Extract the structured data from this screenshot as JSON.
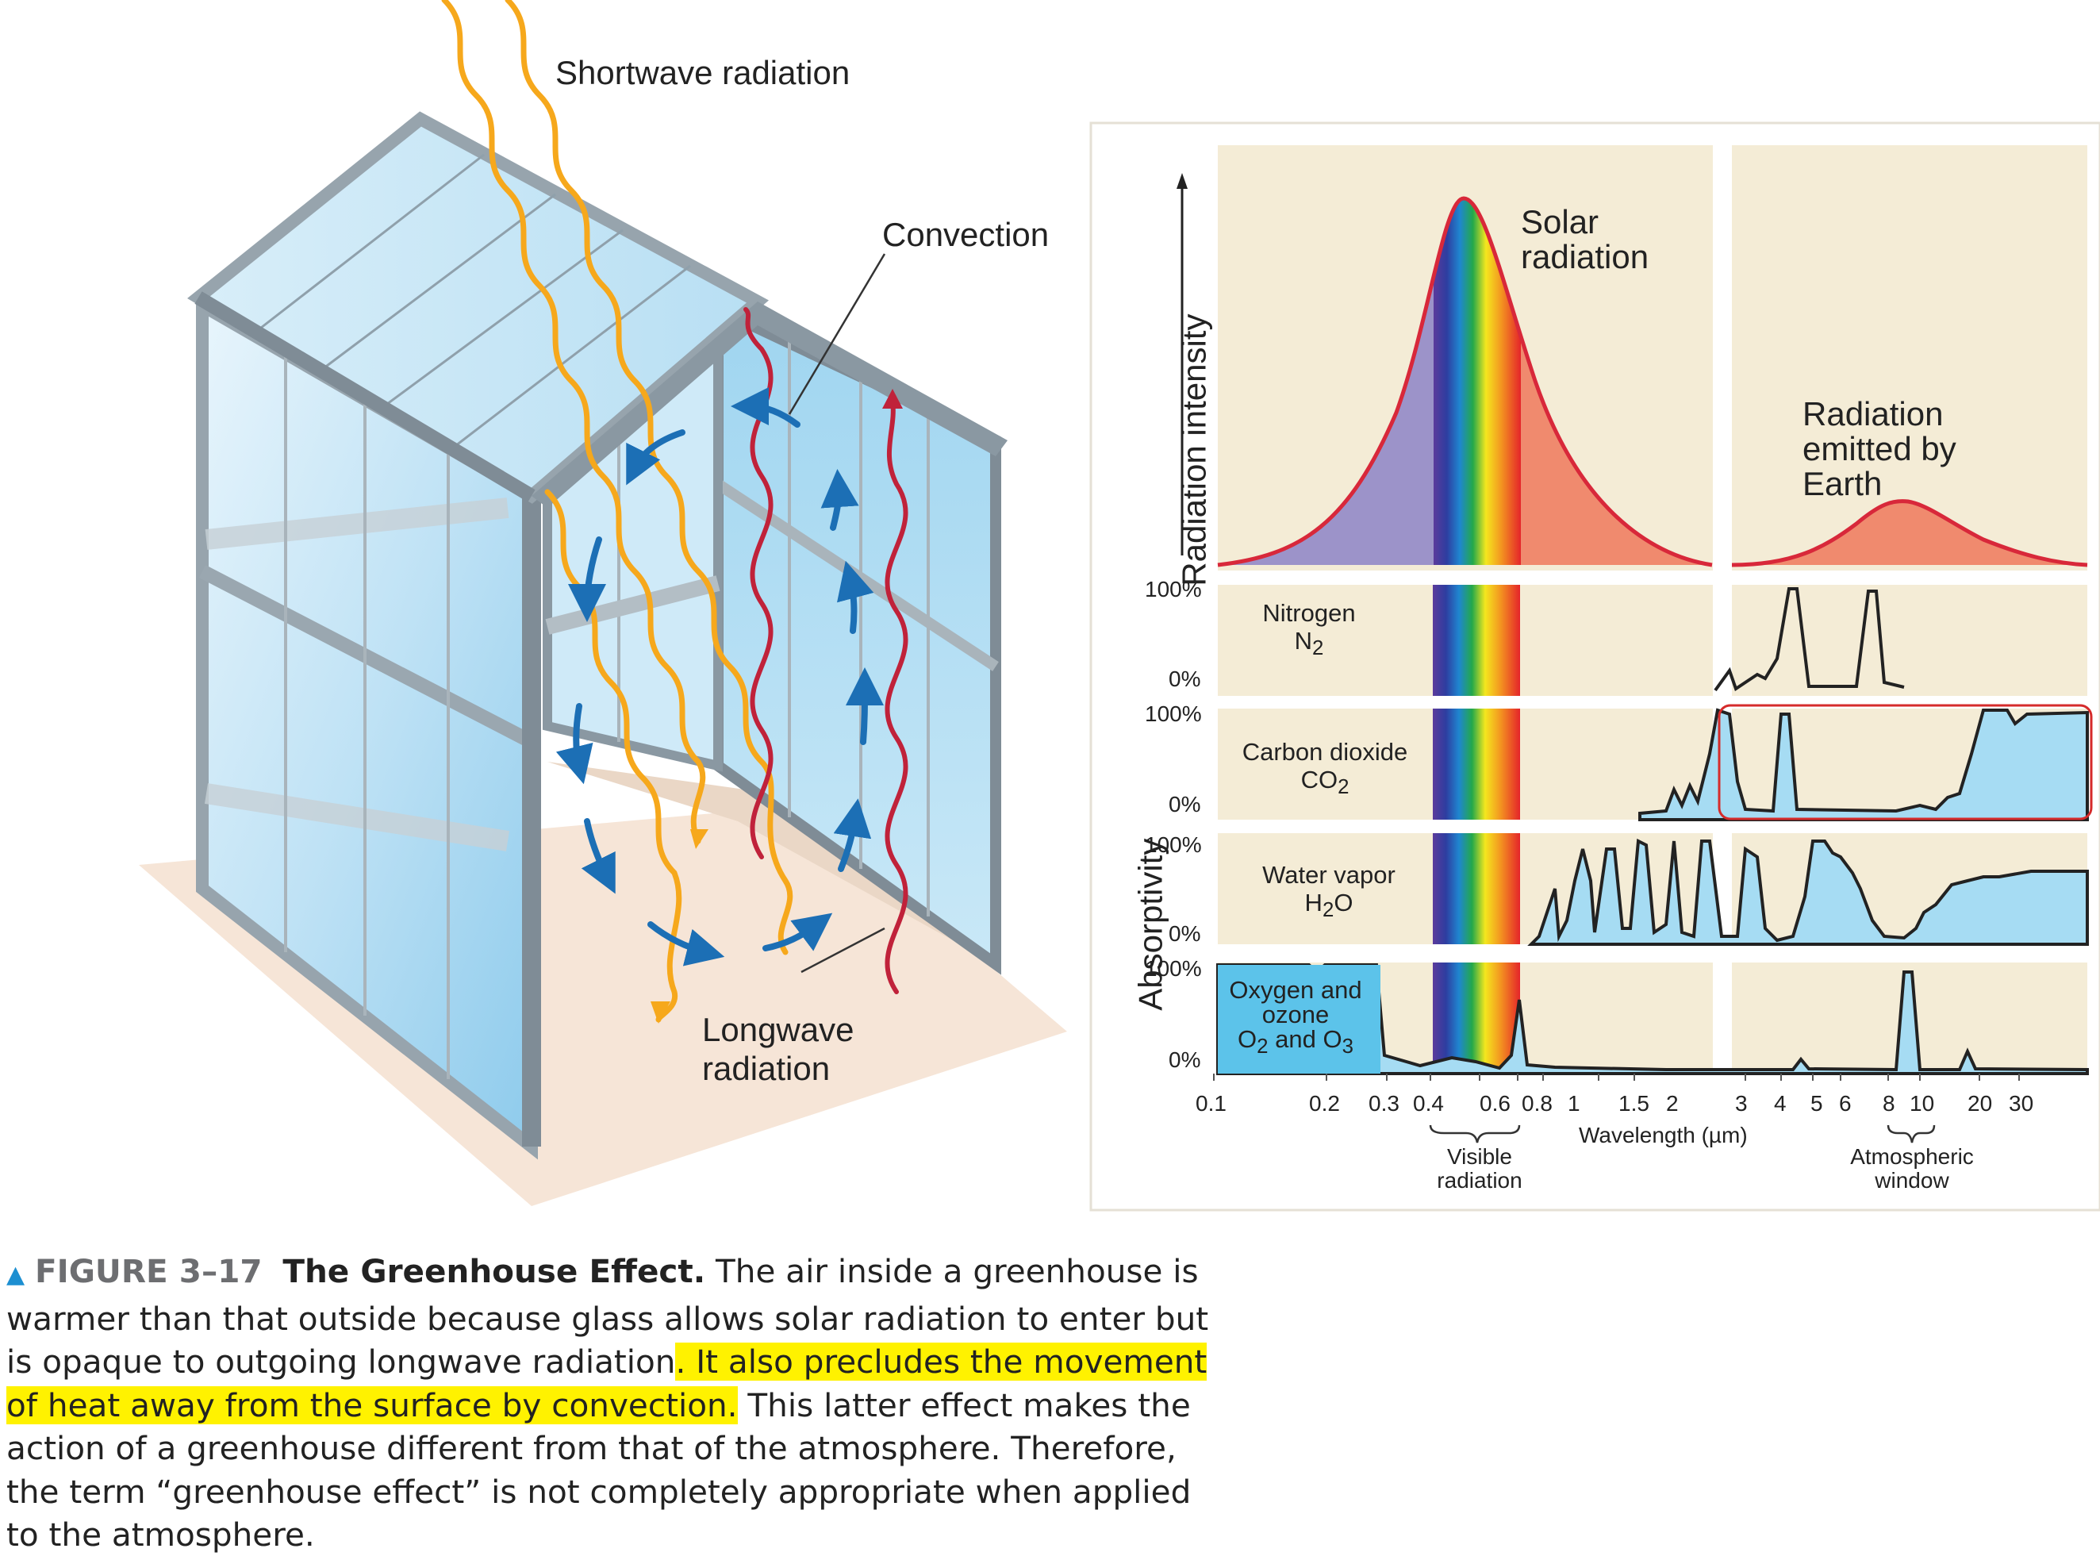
{
  "greenhouse": {
    "shortwave_label": "Shortwave radiation",
    "convection_label": "Convection",
    "longwave_label": "Longwave radiation"
  },
  "spectrum": {
    "solar_label": "Solar radiation",
    "earth_label": "Radiation emitted by Earth",
    "y_axis_top": "Radiation intensity",
    "y_axis_bottom": "Absorptivity",
    "x_axis": "Wavelength (µm)",
    "x_ticks": [
      "0.1",
      "0.2",
      "0.3",
      "0.4",
      "0.6",
      "0.8",
      "1",
      "1.5",
      "2",
      "3",
      "4",
      "5",
      "6",
      "8",
      "10",
      "20",
      "30"
    ],
    "visible_label": "Visible radiation",
    "window_label": "Atmospheric window",
    "pct_100": "100%",
    "pct_0": "0%",
    "gases": [
      {
        "name": "Nitrogen",
        "formula": "N",
        "sub": "2"
      },
      {
        "name": "Carbon dioxide",
        "formula": "CO",
        "sub": "2"
      },
      {
        "name": "Water vapor",
        "formula": "H",
        "sub": "2",
        "formula_tail": "O"
      },
      {
        "name": "Oxygen and ozone",
        "formula": "O",
        "sub": "2",
        "formula_mid": " and O",
        "sub2": "3"
      }
    ]
  },
  "caption": {
    "figure_number": "FIGURE 3–17",
    "figure_title": "The Greenhouse Effect.",
    "text_1": " The air inside a greenhouse is warmer than that outside because glass allows solar radiation to enter but is opaque to outgoing longwave radiation",
    "highlighted": ". It also precludes the movement of heat away from the surface by convection.",
    "text_2": " This latter effect makes the action of a greenhouse different from that of the atmosphere. Therefore, the term “greenhouse effect” is not completely appropriate when applied to the atmosphere."
  },
  "colors": {
    "panel_bg": "#f4ecd6",
    "absorb_fill": "#a6dcf3",
    "highlight": "#fff200",
    "sun_line": "#d8283a",
    "arrow_blue": "#1c6fb5",
    "wave_orange": "#f6a81c",
    "wave_red": "#c0223a"
  }
}
